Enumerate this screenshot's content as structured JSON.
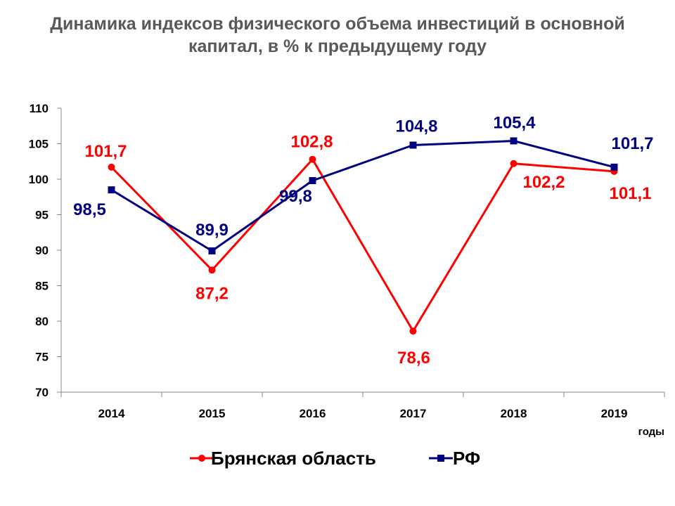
{
  "chart_data": {
    "type": "line",
    "title": "Динамика индексов физического объема инвестиций в основной капитал, в % к предыдущему году",
    "title_lines": [
      "Динамика индексов физического объема инвестиций в основной",
      "капитал, в % к предыдущему году"
    ],
    "categories": [
      "2014",
      "2015",
      "2016",
      "2017",
      "2018",
      "2019"
    ],
    "xlabel": "годы",
    "ylabel": "",
    "ylim": [
      70,
      110
    ],
    "yticks": [
      "70",
      "75",
      "80",
      "85",
      "90",
      "95",
      "100",
      "105",
      "110"
    ],
    "grid": false,
    "legend_position": "bottom",
    "series": [
      {
        "name": "Брянская область",
        "values": [
          101.7,
          87.2,
          102.8,
          78.6,
          102.2,
          101.1
        ],
        "labels": [
          "101,7",
          "87,2",
          "102,8",
          "78,6",
          "102,2",
          "101,1"
        ],
        "color": "#ff0000",
        "marker": "circle"
      },
      {
        "name": "РФ",
        "values": [
          98.5,
          89.9,
          99.8,
          104.8,
          105.4,
          101.7
        ],
        "labels": [
          "98,5",
          "89,9",
          "99,8",
          "104,8",
          "105,4",
          "101,7"
        ],
        "color": "#000080",
        "marker": "square"
      }
    ]
  }
}
